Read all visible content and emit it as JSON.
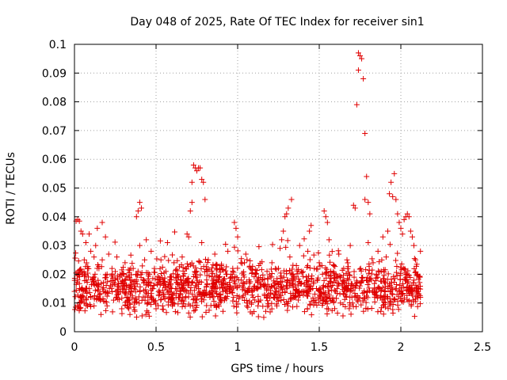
{
  "chart_data": {
    "type": "scatter",
    "title": "Day 048 of 2025, Rate Of TEC Index for receiver sin1",
    "xlabel": "GPS time / hours",
    "ylabel": "ROTI / TECUs",
    "xlim": [
      0,
      2.5
    ],
    "ylim": [
      0,
      0.1
    ],
    "x_ticks": [
      "0",
      "0.5",
      "1",
      "1.5",
      "2",
      "2.5"
    ],
    "y_ticks": [
      "0",
      "0.01",
      "0.02",
      "0.03",
      "0.04",
      "0.05",
      "0.06",
      "0.07",
      "0.08",
      "0.09",
      "0.1"
    ],
    "grid": true,
    "marker": "+",
    "color": "#e00000",
    "points": [
      [
        0.0,
        0.014
      ],
      [
        0.01,
        0.0385
      ],
      [
        0.02,
        0.039
      ],
      [
        0.02,
        0.018
      ],
      [
        0.03,
        0.008
      ],
      [
        0.03,
        0.0385
      ],
      [
        0.04,
        0.012
      ],
      [
        0.04,
        0.035
      ],
      [
        0.05,
        0.02
      ],
      [
        0.05,
        0.034
      ],
      [
        0.06,
        0.025
      ],
      [
        0.06,
        0.01
      ],
      [
        0.07,
        0.031
      ],
      [
        0.07,
        0.015
      ],
      [
        0.08,
        0.022
      ],
      [
        0.08,
        0.009
      ],
      [
        0.09,
        0.034
      ],
      [
        0.1,
        0.028
      ],
      [
        0.1,
        0.012
      ],
      [
        0.11,
        0.018
      ],
      [
        0.12,
        0.026
      ],
      [
        0.12,
        0.009
      ],
      [
        0.13,
        0.03
      ],
      [
        0.14,
        0.016
      ],
      [
        0.14,
        0.036
      ],
      [
        0.15,
        0.022
      ],
      [
        0.16,
        0.011
      ],
      [
        0.17,
        0.038
      ],
      [
        0.17,
        0.025
      ],
      [
        0.18,
        0.014
      ],
      [
        0.19,
        0.033
      ],
      [
        0.2,
        0.02
      ],
      [
        0.2,
        0.009
      ],
      [
        0.21,
        0.027
      ],
      [
        0.22,
        0.016
      ],
      [
        0.23,
        0.022
      ],
      [
        0.24,
        0.011
      ],
      [
        0.25,
        0.018
      ],
      [
        0.26,
        0.026
      ],
      [
        0.27,
        0.013
      ],
      [
        0.28,
        0.02
      ],
      [
        0.29,
        0.008
      ],
      [
        0.3,
        0.017
      ],
      [
        0.31,
        0.024
      ],
      [
        0.32,
        0.012
      ],
      [
        0.33,
        0.019
      ],
      [
        0.34,
        0.006
      ],
      [
        0.35,
        0.015
      ],
      [
        0.36,
        0.022
      ],
      [
        0.37,
        0.01
      ],
      [
        0.38,
        0.04
      ],
      [
        0.39,
        0.042
      ],
      [
        0.4,
        0.045
      ],
      [
        0.41,
        0.043
      ],
      [
        0.4,
        0.03
      ],
      [
        0.42,
        0.018
      ],
      [
        0.43,
        0.025
      ],
      [
        0.44,
        0.032
      ],
      [
        0.45,
        0.012
      ],
      [
        0.46,
        0.02
      ],
      [
        0.47,
        0.028
      ],
      [
        0.48,
        0.015
      ],
      [
        0.49,
        0.022
      ],
      [
        0.5,
        0.008
      ],
      [
        0.51,
        0.018
      ],
      [
        0.52,
        0.013
      ],
      [
        0.53,
        0.025
      ],
      [
        0.54,
        0.009
      ],
      [
        0.55,
        0.017
      ],
      [
        0.56,
        0.021
      ],
      [
        0.57,
        0.031
      ],
      [
        0.58,
        0.014
      ],
      [
        0.59,
        0.019
      ],
      [
        0.6,
        0.011
      ],
      [
        0.61,
        0.024
      ],
      [
        0.62,
        0.015
      ],
      [
        0.63,
        0.02
      ],
      [
        0.64,
        0.012
      ],
      [
        0.65,
        0.018
      ],
      [
        0.66,
        0.026
      ],
      [
        0.67,
        0.016
      ],
      [
        0.68,
        0.022
      ],
      [
        0.69,
        0.034
      ],
      [
        0.7,
        0.033
      ],
      [
        0.71,
        0.042
      ],
      [
        0.72,
        0.045
      ],
      [
        0.72,
        0.052
      ],
      [
        0.73,
        0.058
      ],
      [
        0.74,
        0.057
      ],
      [
        0.75,
        0.056
      ],
      [
        0.76,
        0.057
      ],
      [
        0.77,
        0.057
      ],
      [
        0.78,
        0.053
      ],
      [
        0.79,
        0.052
      ],
      [
        0.8,
        0.046
      ],
      [
        0.78,
        0.031
      ],
      [
        0.74,
        0.02
      ],
      [
        0.76,
        0.015
      ],
      [
        0.81,
        0.018
      ],
      [
        0.82,
        0.025
      ],
      [
        0.83,
        0.012
      ],
      [
        0.84,
        0.021
      ],
      [
        0.85,
        0.015
      ],
      [
        0.86,
        0.027
      ],
      [
        0.87,
        0.009
      ],
      [
        0.88,
        0.019
      ],
      [
        0.89,
        0.013
      ],
      [
        0.9,
        0.023
      ],
      [
        0.91,
        0.017
      ],
      [
        0.92,
        0.011
      ],
      [
        0.93,
        0.02
      ],
      [
        0.94,
        0.028
      ],
      [
        0.95,
        0.014
      ],
      [
        0.96,
        0.019
      ],
      [
        0.97,
        0.022
      ],
      [
        0.98,
        0.038
      ],
      [
        0.99,
        0.036
      ],
      [
        1.0,
        0.033
      ],
      [
        1.01,
        0.016
      ],
      [
        1.02,
        0.024
      ],
      [
        1.03,
        0.012
      ],
      [
        1.04,
        0.019
      ],
      [
        1.05,
        0.027
      ],
      [
        1.06,
        0.01
      ],
      [
        1.07,
        0.018
      ],
      [
        1.08,
        0.022
      ],
      [
        1.09,
        0.014
      ],
      [
        1.1,
        0.007
      ],
      [
        1.11,
        0.02
      ],
      [
        1.12,
        0.015
      ],
      [
        1.13,
        0.023
      ],
      [
        1.14,
        0.011
      ],
      [
        1.15,
        0.018
      ],
      [
        1.16,
        0.005
      ],
      [
        1.17,
        0.016
      ],
      [
        1.18,
        0.021
      ],
      [
        1.19,
        0.013
      ],
      [
        1.2,
        0.019
      ],
      [
        1.21,
        0.024
      ],
      [
        1.22,
        0.012
      ],
      [
        1.23,
        0.017
      ],
      [
        1.24,
        0.009
      ],
      [
        1.25,
        0.022
      ],
      [
        1.26,
        0.029
      ],
      [
        1.27,
        0.032
      ],
      [
        1.28,
        0.035
      ],
      [
        1.29,
        0.04
      ],
      [
        1.3,
        0.041
      ],
      [
        1.31,
        0.043
      ],
      [
        1.33,
        0.046
      ],
      [
        1.32,
        0.026
      ],
      [
        1.34,
        0.018
      ],
      [
        1.35,
        0.012
      ],
      [
        1.36,
        0.023
      ],
      [
        1.37,
        0.016
      ],
      [
        1.38,
        0.03
      ],
      [
        1.39,
        0.021
      ],
      [
        1.4,
        0.014
      ],
      [
        1.41,
        0.007
      ],
      [
        1.42,
        0.019
      ],
      [
        1.43,
        0.028
      ],
      [
        1.44,
        0.035
      ],
      [
        1.45,
        0.037
      ],
      [
        1.46,
        0.015
      ],
      [
        1.47,
        0.022
      ],
      [
        1.48,
        0.011
      ],
      [
        1.49,
        0.018
      ],
      [
        1.5,
        0.024
      ],
      [
        1.51,
        0.013
      ],
      [
        1.52,
        0.02
      ],
      [
        1.53,
        0.042
      ],
      [
        1.54,
        0.04
      ],
      [
        1.55,
        0.038
      ],
      [
        1.56,
        0.032
      ],
      [
        1.57,
        0.017
      ],
      [
        1.58,
        0.011
      ],
      [
        1.59,
        0.023
      ],
      [
        1.6,
        0.014
      ],
      [
        1.61,
        0.019
      ],
      [
        1.62,
        0.027
      ],
      [
        1.63,
        0.01
      ],
      [
        1.64,
        0.016
      ],
      [
        1.65,
        0.022
      ],
      [
        1.66,
        0.013
      ],
      [
        1.67,
        0.025
      ],
      [
        1.68,
        0.018
      ],
      [
        1.69,
        0.03
      ],
      [
        1.7,
        0.012
      ],
      [
        1.71,
        0.044
      ],
      [
        1.72,
        0.043
      ],
      [
        1.73,
        0.079
      ],
      [
        1.74,
        0.091
      ],
      [
        1.74,
        0.097
      ],
      [
        1.75,
        0.096
      ],
      [
        1.76,
        0.095
      ],
      [
        1.77,
        0.088
      ],
      [
        1.78,
        0.069
      ],
      [
        1.78,
        0.046
      ],
      [
        1.79,
        0.054
      ],
      [
        1.8,
        0.045
      ],
      [
        1.81,
        0.041
      ],
      [
        1.8,
        0.031
      ],
      [
        1.82,
        0.018
      ],
      [
        1.83,
        0.024
      ],
      [
        1.84,
        0.013
      ],
      [
        1.85,
        0.02
      ],
      [
        1.86,
        0.028
      ],
      [
        1.87,
        0.015
      ],
      [
        1.88,
        0.021
      ],
      [
        1.89,
        0.033
      ],
      [
        1.9,
        0.017
      ],
      [
        1.91,
        0.026
      ],
      [
        1.92,
        0.035
      ],
      [
        1.93,
        0.048
      ],
      [
        1.94,
        0.052
      ],
      [
        1.95,
        0.047
      ],
      [
        1.96,
        0.055
      ],
      [
        1.97,
        0.046
      ],
      [
        1.98,
        0.041
      ],
      [
        1.99,
        0.038
      ],
      [
        2.0,
        0.036
      ],
      [
        2.01,
        0.034
      ],
      [
        2.02,
        0.039
      ],
      [
        2.03,
        0.04
      ],
      [
        2.04,
        0.041
      ],
      [
        2.05,
        0.04
      ],
      [
        2.06,
        0.035
      ],
      [
        2.07,
        0.033
      ],
      [
        2.08,
        0.03
      ],
      [
        2.09,
        0.025
      ],
      [
        2.1,
        0.02
      ],
      [
        2.11,
        0.015
      ],
      [
        2.12,
        0.012
      ],
      [
        2.12,
        0.028
      ]
    ],
    "background_cloud": {
      "x_range": [
        0,
        2.12
      ],
      "y_center": 0.015,
      "y_spread": 0.009,
      "count": 1400
    }
  }
}
